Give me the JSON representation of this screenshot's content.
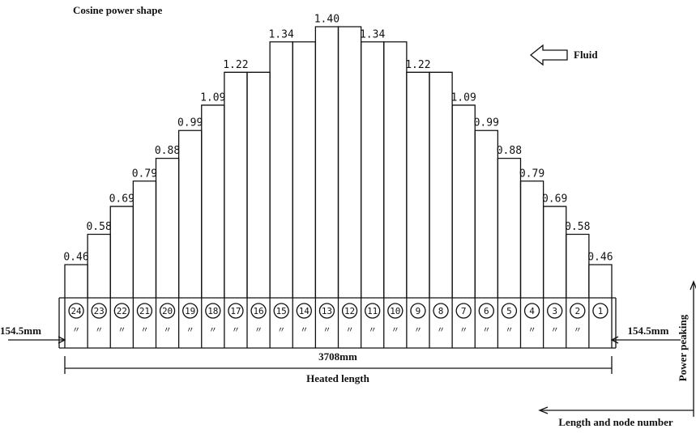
{
  "chart_data": {
    "type": "bar",
    "title": "Cosine power shape",
    "categories": [
      "24",
      "23",
      "22",
      "21",
      "20",
      "19",
      "18",
      "17",
      "16",
      "15",
      "14",
      "13",
      "12",
      "11",
      "10",
      "9",
      "8",
      "7",
      "6",
      "5",
      "4",
      "3",
      "2",
      "1"
    ],
    "values": [
      0.46,
      0.58,
      0.69,
      0.79,
      0.88,
      0.99,
      1.09,
      1.22,
      1.22,
      1.34,
      1.34,
      1.4,
      1.4,
      1.34,
      1.34,
      1.22,
      1.22,
      1.09,
      0.99,
      0.88,
      0.79,
      0.69,
      0.58,
      0.46
    ],
    "value_labels": [
      "0.46",
      "0.58",
      "0.69",
      "0.79",
      "0.88",
      "0.99",
      "1.09",
      "1.22",
      null,
      "1.34",
      null,
      "1.40",
      null,
      "1.34",
      null,
      "1.22",
      null,
      "1.09",
      "0.99",
      "0.88",
      "0.79",
      "0.69",
      "0.58",
      "0.46"
    ],
    "node_marks": [
      "〃",
      "〃",
      "〃",
      "〃",
      "〃",
      "〃",
      "〃",
      "〃",
      "〃",
      "〃",
      "〃",
      "〃",
      "〃",
      "〃",
      "〃",
      "〃",
      "〃",
      "〃",
      "〃",
      "〃",
      "〃",
      "〃",
      "〃"
    ],
    "fluid_label": "Fluid",
    "left_offset": "154.5mm",
    "right_offset": "154.5mm",
    "total_length": "3708mm",
    "length_caption": "Heated length",
    "y_axis_label": "Power peaking",
    "x_axis_label": "Length and node number"
  }
}
